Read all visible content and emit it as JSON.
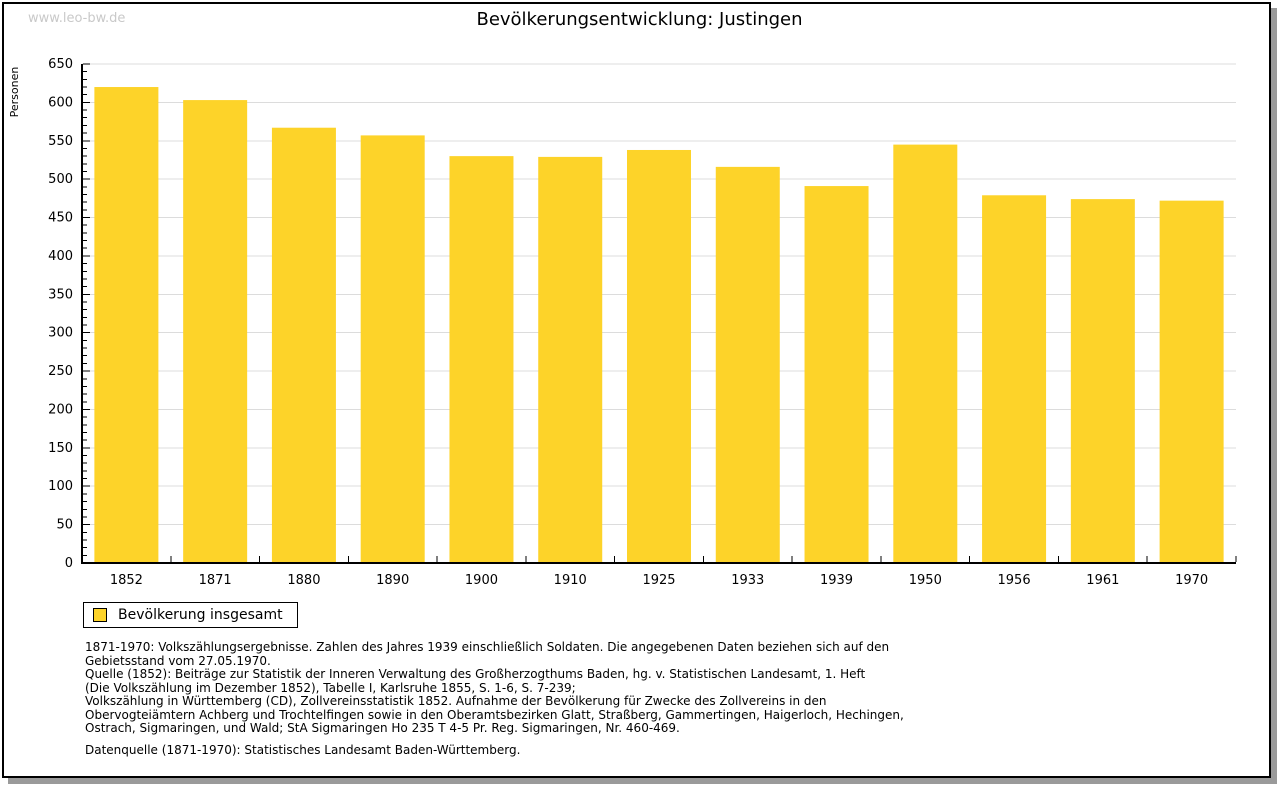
{
  "page": {
    "watermark": "www.leo-bw.de",
    "title": "Bevölkerungsentwicklung: Justingen"
  },
  "chart_data": {
    "type": "bar",
    "title": "Bevölkerungsentwicklung: Justingen",
    "ylabel": "Personen",
    "xlabel": "",
    "categories": [
      "1852",
      "1871",
      "1880",
      "1890",
      "1900",
      "1910",
      "1925",
      "1933",
      "1939",
      "1950",
      "1956",
      "1961",
      "1970"
    ],
    "series": [
      {
        "name": "Bevölkerung insgesamt",
        "values": [
          620,
          603,
          567,
          557,
          530,
          529,
          538,
          516,
          491,
          545,
          479,
          474,
          472
        ]
      }
    ],
    "ylim": [
      0,
      650
    ],
    "y_major_step": 50,
    "y_minor_step": 10,
    "grid": true,
    "legend_position": "bottom-left",
    "bar_color": "#fdd329",
    "grid_color": "#dcdcdc",
    "axis_color": "#000000"
  },
  "legend": {
    "label": "Bevölkerung insgesamt",
    "swatch_color": "#fdd329"
  },
  "footnote": {
    "lines": [
      "1871-1970: Volkszählungsergebnisse. Zahlen des Jahres 1939 einschließlich Soldaten. Die angegebenen Daten beziehen sich auf den",
      "Gebietsstand vom 27.05.1970.",
      "Quelle (1852): Beiträge zur Statistik der Inneren Verwaltung des Großherzogthums Baden, hg. v. Statistischen Landesamt, 1. Heft",
      "(Die Volkszählung im Dezember 1852), Tabelle I, Karlsruhe 1855, S. 1-6, S. 7-239;",
      "Volkszählung in Württemberg (CD), Zollvereinsstatistik 1852. Aufnahme der Bevölkerung für Zwecke des Zollvereins in den",
      "Obervogteiämtern Achberg und Trochtelfingen sowie in den Oberamtsbezirken Glatt, Straßberg, Gammertingen, Haigerloch, Hechingen,",
      "Ostrach, Sigmaringen, und Wald; StA Sigmaringen Ho 235 T 4-5 Pr. Reg. Sigmaringen, Nr. 460-469."
    ],
    "datasource": "Datenquelle (1871-1970): Statistisches Landesamt Baden-Württemberg."
  }
}
